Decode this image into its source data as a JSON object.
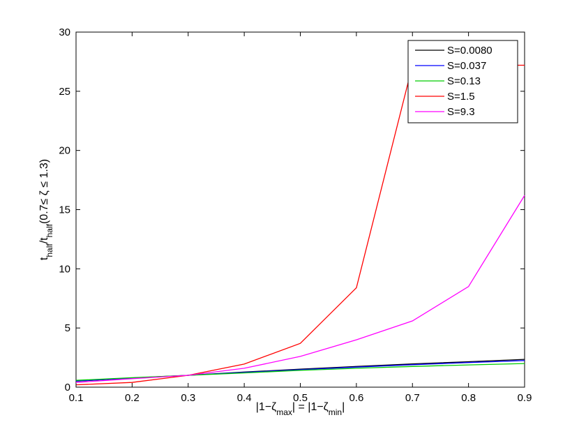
{
  "chart_data": {
    "type": "line",
    "x": [
      0.1,
      0.2,
      0.3,
      0.4,
      0.5,
      0.6,
      0.7,
      0.8,
      0.9
    ],
    "xlim": [
      0.1,
      0.9
    ],
    "ylim": [
      0,
      30
    ],
    "xticks": [
      "0.1",
      "0.2",
      "0.3",
      "0.4",
      "0.5",
      "0.6",
      "0.7",
      "0.8",
      "0.9"
    ],
    "yticks": [
      "0",
      "5",
      "10",
      "15",
      "20",
      "25",
      "30"
    ],
    "xlabel_parts": [
      "|1−ζ",
      "max",
      "| = |1−ζ",
      "min",
      "|"
    ],
    "ylabel_parts": [
      "t",
      "half",
      "/t",
      "half",
      "(0.7≤ ζ ≤ 1.3)"
    ],
    "grid": false,
    "legend_position": "top-right",
    "series": [
      {
        "name": "S=0.0080",
        "color": "#000000",
        "values": [
          0.5,
          0.78,
          1.0,
          1.28,
          1.52,
          1.75,
          1.97,
          2.15,
          2.35
        ]
      },
      {
        "name": "S=0.037",
        "color": "#0000ff",
        "values": [
          0.52,
          0.77,
          1.0,
          1.25,
          1.48,
          1.7,
          1.9,
          2.08,
          2.25
        ]
      },
      {
        "name": "S=0.13",
        "color": "#00cc00",
        "values": [
          0.58,
          0.8,
          1.0,
          1.2,
          1.42,
          1.6,
          1.75,
          1.88,
          2.0
        ]
      },
      {
        "name": "S=1.5",
        "color": "#ff0000",
        "values": [
          0.2,
          0.4,
          1.0,
          1.95,
          3.7,
          8.4,
          27.2,
          27.2,
          27.2
        ]
      },
      {
        "name": "S=9.3",
        "color": "#ff00ff",
        "values": [
          0.4,
          0.72,
          1.0,
          1.6,
          2.6,
          4.0,
          5.6,
          8.5,
          16.2
        ]
      }
    ]
  }
}
